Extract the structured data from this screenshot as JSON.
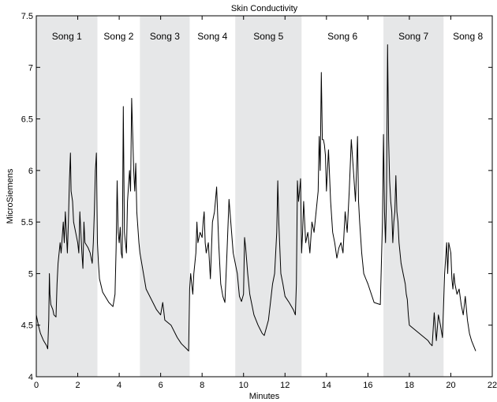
{
  "chart_data": {
    "type": "line",
    "title": "Skin Conductivity",
    "xlabel": "Minutes",
    "ylabel": "MicroSiemens",
    "xlim": [
      0,
      22
    ],
    "ylim": [
      4,
      7.5
    ],
    "xticks": [
      0,
      2,
      4,
      6,
      8,
      10,
      12,
      14,
      16,
      18,
      20,
      22
    ],
    "yticks": [
      4,
      4.5,
      5,
      5.5,
      6,
      6.5,
      7,
      7.5
    ],
    "grid": false,
    "band_color": "#e6e7e8",
    "line_color": "#000000",
    "songs": [
      {
        "label": "Song 1",
        "start": 0.0,
        "end": 2.95,
        "shaded": true
      },
      {
        "label": "Song 2",
        "start": 2.95,
        "end": 5.0,
        "shaded": false
      },
      {
        "label": "Song 3",
        "start": 5.0,
        "end": 7.4,
        "shaded": true
      },
      {
        "label": "Song 4",
        "start": 7.4,
        "end": 9.6,
        "shaded": false
      },
      {
        "label": "Song 5",
        "start": 9.6,
        "end": 12.8,
        "shaded": true
      },
      {
        "label": "Song 6",
        "start": 12.8,
        "end": 16.75,
        "shaded": false
      },
      {
        "label": "Song 7",
        "start": 16.75,
        "end": 19.65,
        "shaded": true
      },
      {
        "label": "Song 8",
        "start": 19.65,
        "end": 22.0,
        "shaded": false
      }
    ],
    "series": [
      {
        "x": [
          0.0,
          0.05,
          0.1,
          0.2,
          0.35,
          0.5,
          0.55,
          0.6,
          0.63,
          0.66,
          0.7,
          0.8,
          0.85,
          0.95,
          1.0,
          1.05,
          1.15,
          1.2,
          1.3,
          1.35,
          1.4,
          1.45,
          1.5,
          1.55,
          1.6,
          1.65,
          1.68,
          1.75,
          1.8,
          1.9,
          2.0,
          2.05,
          2.1,
          2.2,
          2.25,
          2.3,
          2.35,
          2.5,
          2.6,
          2.7,
          2.75,
          2.8,
          2.85,
          2.9,
          2.95,
          3.0,
          3.05,
          3.2,
          3.5,
          3.7,
          3.8,
          3.85,
          3.9,
          3.95,
          4.0,
          4.05,
          4.1,
          4.15,
          4.2,
          4.25,
          4.3,
          4.35,
          4.4,
          4.5,
          4.55,
          4.6,
          4.7,
          4.75,
          4.8,
          4.85,
          4.95,
          5.0,
          5.3,
          5.8,
          6.0,
          6.1,
          6.2,
          6.5,
          6.8,
          7.0,
          7.2,
          7.35,
          7.4,
          7.45,
          7.5,
          7.55,
          7.6,
          7.7,
          7.75,
          7.8,
          7.9,
          8.0,
          8.05,
          8.1,
          8.15,
          8.2,
          8.3,
          8.4,
          8.5,
          8.6,
          8.7,
          8.8,
          8.9,
          9.0,
          9.1,
          9.2,
          9.3,
          9.5,
          9.7,
          9.8,
          9.9,
          10.0,
          10.05,
          10.1,
          10.2,
          10.3,
          10.5,
          10.7,
          10.8,
          10.9,
          11.0,
          11.2,
          11.4,
          11.5,
          11.6,
          11.65,
          11.7,
          11.8,
          11.9,
          12.0,
          12.2,
          12.4,
          12.5,
          12.55,
          12.6,
          12.65,
          12.7,
          12.75,
          12.8,
          12.85,
          12.9,
          13.0,
          13.1,
          13.2,
          13.3,
          13.4,
          13.5,
          13.6,
          13.65,
          13.7,
          13.75,
          13.8,
          13.85,
          13.9,
          13.95,
          14.0,
          14.1,
          14.2,
          14.3,
          14.4,
          14.5,
          14.6,
          14.7,
          14.8,
          14.9,
          15.0,
          15.1,
          15.2,
          15.3,
          15.4,
          15.45,
          15.5,
          15.55,
          15.6,
          15.7,
          15.8,
          15.9,
          16.0,
          16.3,
          16.6,
          16.7,
          16.75,
          16.8,
          16.85,
          16.9,
          16.95,
          17.0,
          17.05,
          17.1,
          17.15,
          17.2,
          17.25,
          17.3,
          17.35,
          17.4,
          17.45,
          17.5,
          17.6,
          17.7,
          17.8,
          17.85,
          17.9,
          17.95,
          18.0,
          18.3,
          18.6,
          18.9,
          19.0,
          19.1,
          19.2,
          19.3,
          19.4,
          19.5,
          19.6,
          19.7,
          19.8,
          19.85,
          19.9,
          20.0,
          20.05,
          20.1,
          20.15,
          20.2,
          20.3,
          20.4,
          20.5,
          20.6,
          20.7,
          20.8,
          20.9,
          21.0,
          21.2
        ],
        "y": [
          4.6,
          4.55,
          4.5,
          4.42,
          4.35,
          4.3,
          4.27,
          4.55,
          5.0,
          4.8,
          4.7,
          4.65,
          4.6,
          4.58,
          4.9,
          5.1,
          5.3,
          5.2,
          5.5,
          5.3,
          5.6,
          5.4,
          5.2,
          5.5,
          5.9,
          6.17,
          5.8,
          5.7,
          5.5,
          5.4,
          5.3,
          5.2,
          5.6,
          5.2,
          5.05,
          5.5,
          5.3,
          5.25,
          5.2,
          5.1,
          5.3,
          5.6,
          6.0,
          6.17,
          5.3,
          5.1,
          4.95,
          4.82,
          4.72,
          4.68,
          4.8,
          5.25,
          5.9,
          5.4,
          5.3,
          5.45,
          5.2,
          5.15,
          6.62,
          5.4,
          5.3,
          5.2,
          5.7,
          6.0,
          5.8,
          6.7,
          6.0,
          5.8,
          6.07,
          5.6,
          5.3,
          5.2,
          4.85,
          4.65,
          4.6,
          4.72,
          4.55,
          4.5,
          4.38,
          4.32,
          4.28,
          4.25,
          4.85,
          5.0,
          4.9,
          4.8,
          5.0,
          5.2,
          5.5,
          5.3,
          5.4,
          5.35,
          5.5,
          5.6,
          5.3,
          5.2,
          5.3,
          4.95,
          5.5,
          5.6,
          5.84,
          5.3,
          4.9,
          4.78,
          4.72,
          5.2,
          5.72,
          5.2,
          5.0,
          4.78,
          4.73,
          4.8,
          5.35,
          5.25,
          5.0,
          4.8,
          4.6,
          4.5,
          4.46,
          4.42,
          4.4,
          4.55,
          4.9,
          5.0,
          5.4,
          5.9,
          5.5,
          5.0,
          4.9,
          4.78,
          4.72,
          4.65,
          4.6,
          4.9,
          5.9,
          5.7,
          5.8,
          5.92,
          5.2,
          5.4,
          5.7,
          5.3,
          5.4,
          5.2,
          5.5,
          5.4,
          5.6,
          5.8,
          6.33,
          6.0,
          6.95,
          6.3,
          6.3,
          6.25,
          6.15,
          5.8,
          6.2,
          5.7,
          5.4,
          5.3,
          5.15,
          5.25,
          5.3,
          5.2,
          5.6,
          5.4,
          5.8,
          6.3,
          6.0,
          5.7,
          6.0,
          6.33,
          5.7,
          5.5,
          5.2,
          5.0,
          4.95,
          4.9,
          4.72,
          4.7,
          5.5,
          6.35,
          5.6,
          5.3,
          5.8,
          7.22,
          6.3,
          5.9,
          5.7,
          5.6,
          5.3,
          5.5,
          5.6,
          5.95,
          5.6,
          5.5,
          5.3,
          5.1,
          5.0,
          4.9,
          4.8,
          4.75,
          4.6,
          4.5,
          4.45,
          4.4,
          4.35,
          4.32,
          4.3,
          4.62,
          4.35,
          4.6,
          4.5,
          4.38,
          5.0,
          5.3,
          5.0,
          5.3,
          5.2,
          4.95,
          4.85,
          5.0,
          4.9,
          4.8,
          4.85,
          4.7,
          4.6,
          4.78,
          4.55,
          4.42,
          4.35,
          4.25
        ]
      }
    ]
  }
}
